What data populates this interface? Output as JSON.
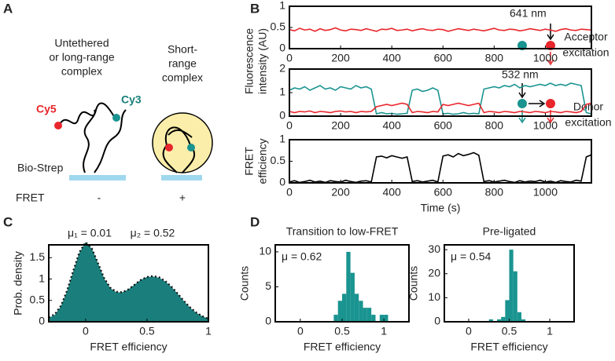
{
  "panels": [
    "A",
    "B",
    "C",
    "D"
  ],
  "schematic": {
    "left": [
      "Untethered",
      "or long-range",
      "complex"
    ],
    "right": [
      "Short-",
      "range",
      "complex"
    ],
    "cy5": "Cy5",
    "cy3": "Cy3",
    "biostrep": "Bio-Strep",
    "fret": "FRET",
    "minus": "-",
    "plus": "+",
    "acceptor_nm": "641 nm",
    "acceptor": [
      "Acceptor",
      "excitation"
    ],
    "donor_nm": "532 nm",
    "donor": [
      "Donor",
      "excitation"
    ]
  },
  "chart_data": [
    {
      "type": "line",
      "ylabel": [
        "Fluorescence",
        "intensity (AU)"
      ],
      "x": [
        0,
        20,
        40,
        60,
        80,
        100,
        120,
        140,
        160,
        180,
        200,
        220,
        240,
        260,
        280,
        300,
        320,
        340,
        360,
        380,
        400,
        420,
        440,
        460,
        480,
        500,
        520,
        540,
        560,
        580,
        600,
        620,
        640,
        660,
        680,
        700,
        720,
        740,
        760,
        780,
        800,
        820,
        840,
        860,
        880,
        900,
        920,
        940,
        960,
        980,
        1000,
        1020,
        1040,
        1060,
        1080,
        1100,
        1120,
        1140,
        1160,
        1180
      ],
      "series": [
        {
          "color": "#e8262b",
          "values": [
            0.45,
            0.42,
            0.48,
            0.44,
            0.46,
            0.41,
            0.47,
            0.43,
            0.45,
            0.49,
            0.44,
            0.42,
            0.46,
            0.45,
            0.43,
            0.47,
            0.44,
            0.41,
            0.46,
            0.45,
            0.48,
            0.43,
            0.44,
            0.46,
            0.42,
            0.45,
            0.47,
            0.44,
            0.43,
            0.46,
            0.45,
            0.41,
            0.44,
            0.47,
            0.45,
            0.43,
            0.46,
            0.44,
            0.42,
            0.45,
            0.48,
            0.44,
            0.43,
            0.46,
            0.45,
            0.42,
            0.44,
            0.47,
            0.45,
            0.43,
            0.46,
            0.44,
            0.41,
            0.45,
            0.47,
            0.44,
            0.43,
            0.46,
            0.45,
            0.44
          ]
        }
      ],
      "xlim": [
        0,
        1180
      ],
      "xticks": [
        0,
        200,
        400,
        600,
        800,
        1000
      ],
      "ylim": [
        0,
        1
      ],
      "yticks": [
        0,
        0.5,
        1
      ]
    },
    {
      "type": "line",
      "x": [
        0,
        20,
        40,
        60,
        80,
        100,
        120,
        140,
        160,
        180,
        200,
        220,
        240,
        260,
        280,
        300,
        320,
        340,
        360,
        380,
        400,
        420,
        440,
        460,
        480,
        500,
        520,
        540,
        560,
        580,
        600,
        620,
        640,
        660,
        680,
        700,
        720,
        740,
        760,
        780,
        800,
        820,
        840,
        860,
        880,
        900,
        920,
        940,
        960,
        980,
        1000,
        1020,
        1040,
        1060,
        1080,
        1100,
        1120,
        1140,
        1160,
        1180
      ],
      "series": [
        {
          "color": "#1a9490",
          "values": [
            1.1,
            1.2,
            1.15,
            1.25,
            1.1,
            1.2,
            1.3,
            1.15,
            1.2,
            1.1,
            1.25,
            1.2,
            1.15,
            1.3,
            1.2,
            1.25,
            1.15,
            0.1,
            0.15,
            0.1,
            0.12,
            0.08,
            0.1,
            0.12,
            1.1,
            1.15,
            1.05,
            1.1,
            1.2,
            1.1,
            0.1,
            0.12,
            0.08,
            0.1,
            0.15,
            0.1,
            0.12,
            0.1,
            1.15,
            1.2,
            1.25,
            1.2,
            1.3,
            1.25,
            1.35,
            1.2,
            1.3,
            1.25,
            1.3,
            1.35,
            1.3,
            1.4,
            1.3,
            1.35,
            1.3,
            1.4,
            1.35,
            1.3,
            0.15,
            0.1
          ]
        },
        {
          "color": "#e8262b",
          "values": [
            0.2,
            0.15,
            0.2,
            0.18,
            0.22,
            0.15,
            0.2,
            0.18,
            0.15,
            0.2,
            0.22,
            0.18,
            0.2,
            0.15,
            0.2,
            0.18,
            0.2,
            0.4,
            0.45,
            0.5,
            0.45,
            0.5,
            0.55,
            0.5,
            0.15,
            0.2,
            0.18,
            0.15,
            0.2,
            0.18,
            0.5,
            0.45,
            0.5,
            0.55,
            0.5,
            0.45,
            0.5,
            0.55,
            0.15,
            0.2,
            0.18,
            0.15,
            0.2,
            0.18,
            0.15,
            0.2,
            0.18,
            0.15,
            0.2,
            0.18,
            0.15,
            0.2,
            0.18,
            0.15,
            0.2,
            0.18,
            0.15,
            0.2,
            0.5,
            0.55
          ]
        }
      ],
      "xlim": [
        0,
        1180
      ],
      "xticks": [
        0,
        200,
        400,
        600,
        800,
        1000
      ],
      "ylim": [
        0,
        2
      ],
      "yticks": [
        0,
        1,
        2
      ]
    },
    {
      "type": "line",
      "ylabel": [
        "FRET",
        "efficiency"
      ],
      "xlabel": "Time (s)",
      "x": [
        0,
        20,
        40,
        60,
        80,
        100,
        120,
        140,
        160,
        180,
        200,
        220,
        240,
        260,
        280,
        300,
        320,
        340,
        360,
        380,
        400,
        420,
        440,
        460,
        480,
        500,
        520,
        540,
        560,
        580,
        600,
        620,
        640,
        660,
        680,
        700,
        720,
        740,
        760,
        780,
        800,
        820,
        840,
        860,
        880,
        900,
        920,
        940,
        960,
        980,
        1000,
        1020,
        1040,
        1060,
        1080,
        1100,
        1120,
        1140,
        1160,
        1180
      ],
      "series": [
        {
          "color": "#000000",
          "values": [
            0.02,
            0.05,
            0.01,
            0.03,
            0.06,
            0.02,
            0.04,
            0.01,
            0.05,
            0.03,
            0.02,
            0.06,
            0.03,
            0.01,
            0.04,
            0.05,
            0.02,
            0.6,
            0.62,
            0.58,
            0.63,
            0.6,
            0.57,
            0.6,
            0.03,
            0.05,
            0.02,
            0.04,
            0.06,
            0.02,
            0.62,
            0.65,
            0.6,
            0.68,
            0.63,
            0.66,
            0.7,
            0.64,
            0.03,
            0.05,
            0.02,
            0.04,
            0.06,
            0.03,
            0.01,
            0.05,
            0.02,
            0.04,
            0.03,
            0.06,
            0.02,
            0.04,
            0.01,
            0.05,
            0.03,
            0.02,
            0.06,
            0.04,
            0.6,
            0.65
          ]
        }
      ],
      "xlim": [
        0,
        1180
      ],
      "xticks": [
        0,
        200,
        400,
        600,
        800,
        1000
      ],
      "ylim": [
        0,
        1
      ],
      "yticks": [
        0,
        0.5,
        1
      ]
    },
    {
      "type": "area",
      "ylabel": "Prob. density",
      "xlabel": "FRET efficiency",
      "annotations": [
        "μ₁ = 0.01",
        "μ₂ = 0.52"
      ],
      "x": [
        -0.3,
        -0.25,
        -0.2,
        -0.15,
        -0.1,
        -0.05,
        0,
        0.05,
        0.1,
        0.15,
        0.2,
        0.25,
        0.3,
        0.35,
        0.4,
        0.45,
        0.5,
        0.55,
        0.6,
        0.65,
        0.7,
        0.75,
        0.8,
        0.85,
        0.9,
        0.95,
        1
      ],
      "series": [
        {
          "color": "#1a7f7c",
          "values": [
            0.08,
            0.15,
            0.35,
            0.7,
            1.15,
            1.6,
            1.85,
            1.7,
            1.35,
            1.0,
            0.78,
            0.68,
            0.68,
            0.75,
            0.86,
            0.97,
            1.04,
            1.05,
            1.02,
            0.93,
            0.8,
            0.64,
            0.47,
            0.32,
            0.2,
            0.12,
            0.06
          ]
        },
        {
          "color": "#111111",
          "values": [
            0.1,
            0.18,
            0.38,
            0.74,
            1.2,
            1.63,
            1.86,
            1.72,
            1.38,
            1.03,
            0.8,
            0.7,
            0.69,
            0.76,
            0.87,
            0.98,
            1.05,
            1.07,
            1.04,
            0.95,
            0.82,
            0.66,
            0.49,
            0.34,
            0.22,
            0.13,
            0.07
          ]
        }
      ],
      "xlim": [
        -0.3,
        1
      ],
      "xticks": [
        0,
        0.5,
        1
      ],
      "ylim": [
        0,
        1.8
      ],
      "yticks": [
        0,
        0.5,
        1,
        1.5
      ]
    },
    {
      "type": "histogram",
      "title": "Transition to low-FRET",
      "ylabel": "Counts",
      "xlabel": "FRET efficiency",
      "annotations": [
        "μ = 0.62"
      ],
      "color": "#1a9490",
      "bins": [
        0.4,
        0.45,
        0.5,
        0.55,
        0.6,
        0.65,
        0.7,
        0.75,
        0.8,
        0.85,
        0.9,
        0.95,
        1.0,
        1.05
      ],
      "counts": [
        1,
        3,
        4,
        10,
        7,
        4,
        3,
        2,
        2,
        1,
        0,
        1,
        1
      ],
      "xlim": [
        -0.3,
        1.3
      ],
      "xticks": [
        0,
        0.5,
        1
      ],
      "ylim": [
        0,
        11
      ],
      "yticks": [
        0,
        5,
        10
      ]
    },
    {
      "type": "histogram",
      "title": "Pre-ligated",
      "ylabel": "Counts",
      "xlabel": "FRET efficiency",
      "annotations": [
        "μ = 0.54"
      ],
      "color": "#1a9490",
      "bins": [
        0.25,
        0.3,
        0.35,
        0.4,
        0.45,
        0.5,
        0.55,
        0.6,
        0.65,
        0.7
      ],
      "counts": [
        1,
        0,
        1,
        2,
        9,
        30,
        21,
        4,
        1
      ],
      "xlim": [
        -0.3,
        1.3
      ],
      "xticks": [
        0,
        0.5,
        1
      ],
      "ylim": [
        0,
        32
      ],
      "yticks": [
        0,
        10,
        20,
        30
      ]
    }
  ]
}
